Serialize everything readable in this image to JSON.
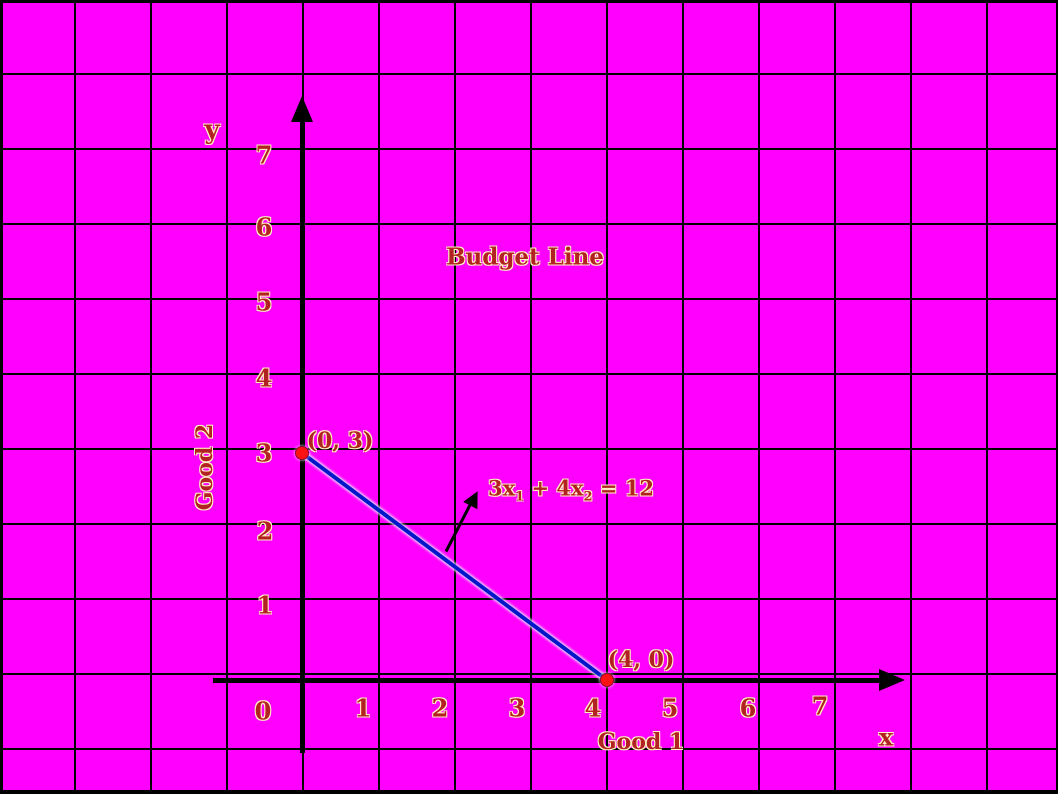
{
  "title": "Budget Line",
  "axes": {
    "x_letter": "x",
    "y_letter": "y",
    "x_label": "Good 1",
    "y_label": "Good 2"
  },
  "ticks": {
    "y": [
      "7",
      "6",
      "5",
      "4",
      "3",
      "2",
      "1"
    ],
    "x": [
      "0",
      "1",
      "2",
      "3",
      "4",
      "5",
      "6",
      "7"
    ]
  },
  "points": [
    {
      "label": "(0, 3)"
    },
    {
      "label": "(4, 0)"
    }
  ],
  "equation": {
    "p1": "3x",
    "sub1": "1",
    "p2": " + 4x",
    "sub2": "2",
    "p3": " = 12"
  },
  "colors": {
    "background": "#ff00ff",
    "grid": "#000000",
    "axis": "#000000",
    "line": "#0018c8",
    "dot": "#ff1212",
    "text": "#b22222",
    "text_halo": "#fff2c2"
  },
  "chart_data": {
    "type": "line",
    "title": "Budget Line",
    "xlabel": "Good 1",
    "ylabel": "Good 2",
    "x_axis_letter": "x",
    "y_axis_letter": "y",
    "xlim": [
      0,
      8
    ],
    "ylim": [
      0,
      8
    ],
    "x_ticks": [
      0,
      1,
      2,
      3,
      4,
      5,
      6,
      7
    ],
    "y_ticks": [
      0,
      1,
      2,
      3,
      4,
      5,
      6,
      7
    ],
    "grid": true,
    "background": "#ff00ff",
    "series": [
      {
        "name": "budget line 3x1 + 4x2 = 12",
        "points": [
          [
            0,
            3
          ],
          [
            4,
            0
          ]
        ],
        "color": "#0018c8",
        "marker": "red-dot"
      }
    ],
    "point_labels": [
      "(0, 3)",
      "(4, 0)"
    ],
    "annotation": {
      "text": "3x1 + 4x2 = 12",
      "arrow_from": [
        1.9,
        1.7
      ],
      "arrow_to": [
        2.3,
        2.5
      ]
    }
  }
}
